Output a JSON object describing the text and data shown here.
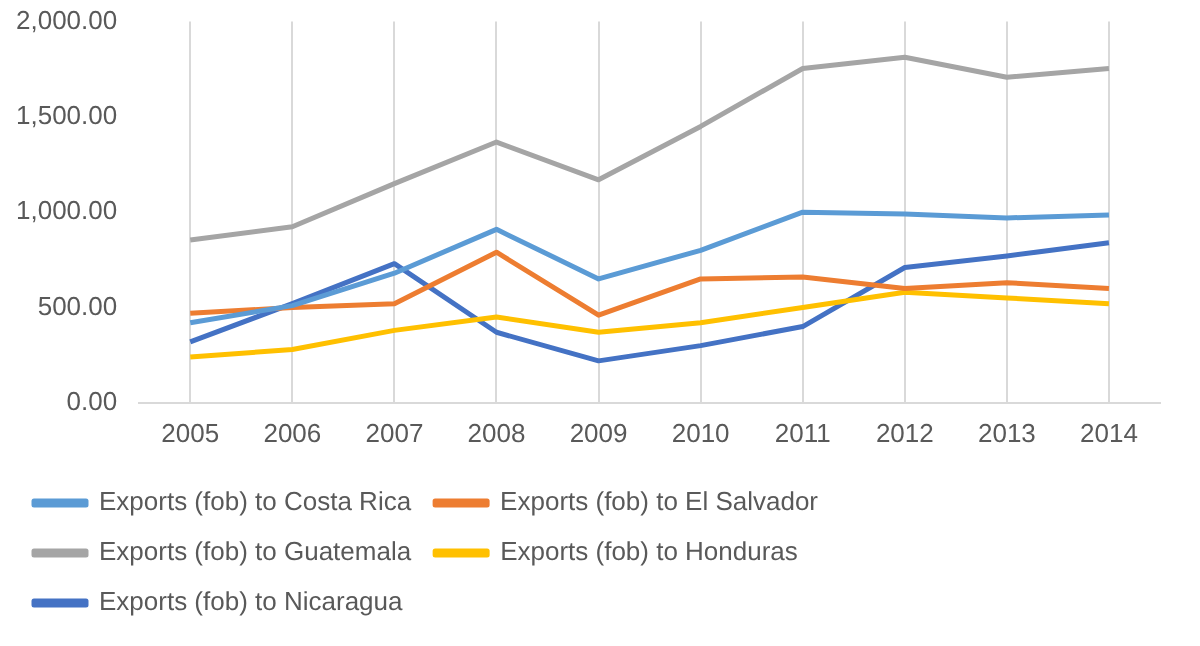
{
  "chart_data": {
    "type": "line",
    "categories": [
      "2005",
      "2006",
      "2007",
      "2008",
      "2009",
      "2010",
      "2011",
      "2012",
      "2013",
      "2014"
    ],
    "series": [
      {
        "name": "Exports (fob) to Costa Rica",
        "color": "#5b9bd5",
        "values": [
          420,
          510,
          680,
          910,
          650,
          800,
          1000,
          990,
          970,
          985
        ]
      },
      {
        "name": "Exports (fob) to El Salvador",
        "color": "#ed7d31",
        "values": [
          470,
          500,
          520,
          790,
          460,
          650,
          660,
          600,
          630,
          600
        ]
      },
      {
        "name": "Exports (fob) to Guatemala",
        "color": "#a5a5a5",
        "values": [
          854,
          924,
          1150,
          1368,
          1170,
          1450,
          1754,
          1813,
          1708,
          1754
        ]
      },
      {
        "name": "Exports (fob) to Honduras",
        "color": "#ffc000",
        "values": [
          240,
          280,
          380,
          450,
          370,
          420,
          500,
          580,
          550,
          520
        ]
      },
      {
        "name": "Exports (fob) to Nicaragua",
        "color": "#4472c4",
        "values": [
          320,
          520,
          730,
          370,
          220,
          300,
          400,
          710,
          770,
          840
        ]
      }
    ],
    "ylim": [
      0,
      2000
    ],
    "yticks": [
      {
        "value": 0,
        "label": "0.00"
      },
      {
        "value": 500,
        "label": "500.00"
      },
      {
        "value": 1000,
        "label": "1,000.00"
      },
      {
        "value": 1500,
        "label": "1,500.00"
      },
      {
        "value": 2000,
        "label": "2,000.00"
      }
    ],
    "grid": "x",
    "legend": "bottom",
    "marker": "none",
    "line_style": "solid"
  }
}
